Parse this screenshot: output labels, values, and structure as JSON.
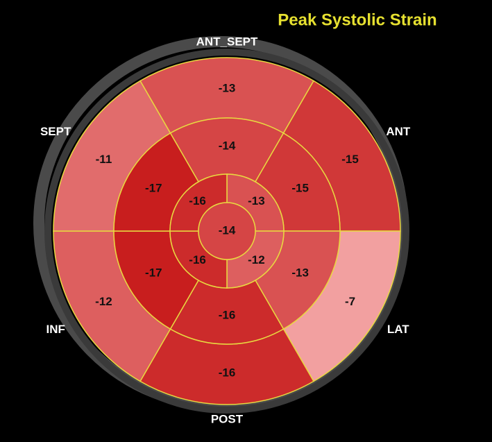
{
  "chart_data": {
    "type": "bullseye",
    "title": "Peak Systolic Strain",
    "labels": [
      "ANT_SEPT",
      "ANT",
      "LAT",
      "POST",
      "INF",
      "SEPT"
    ],
    "basal": [
      -13,
      -15,
      -7,
      -16,
      -12,
      -11
    ],
    "mid": [
      -14,
      -15,
      -13,
      -16,
      -17,
      -17
    ],
    "apical": [
      -13,
      -12,
      -16,
      -16
    ],
    "apex": -14
  }
}
